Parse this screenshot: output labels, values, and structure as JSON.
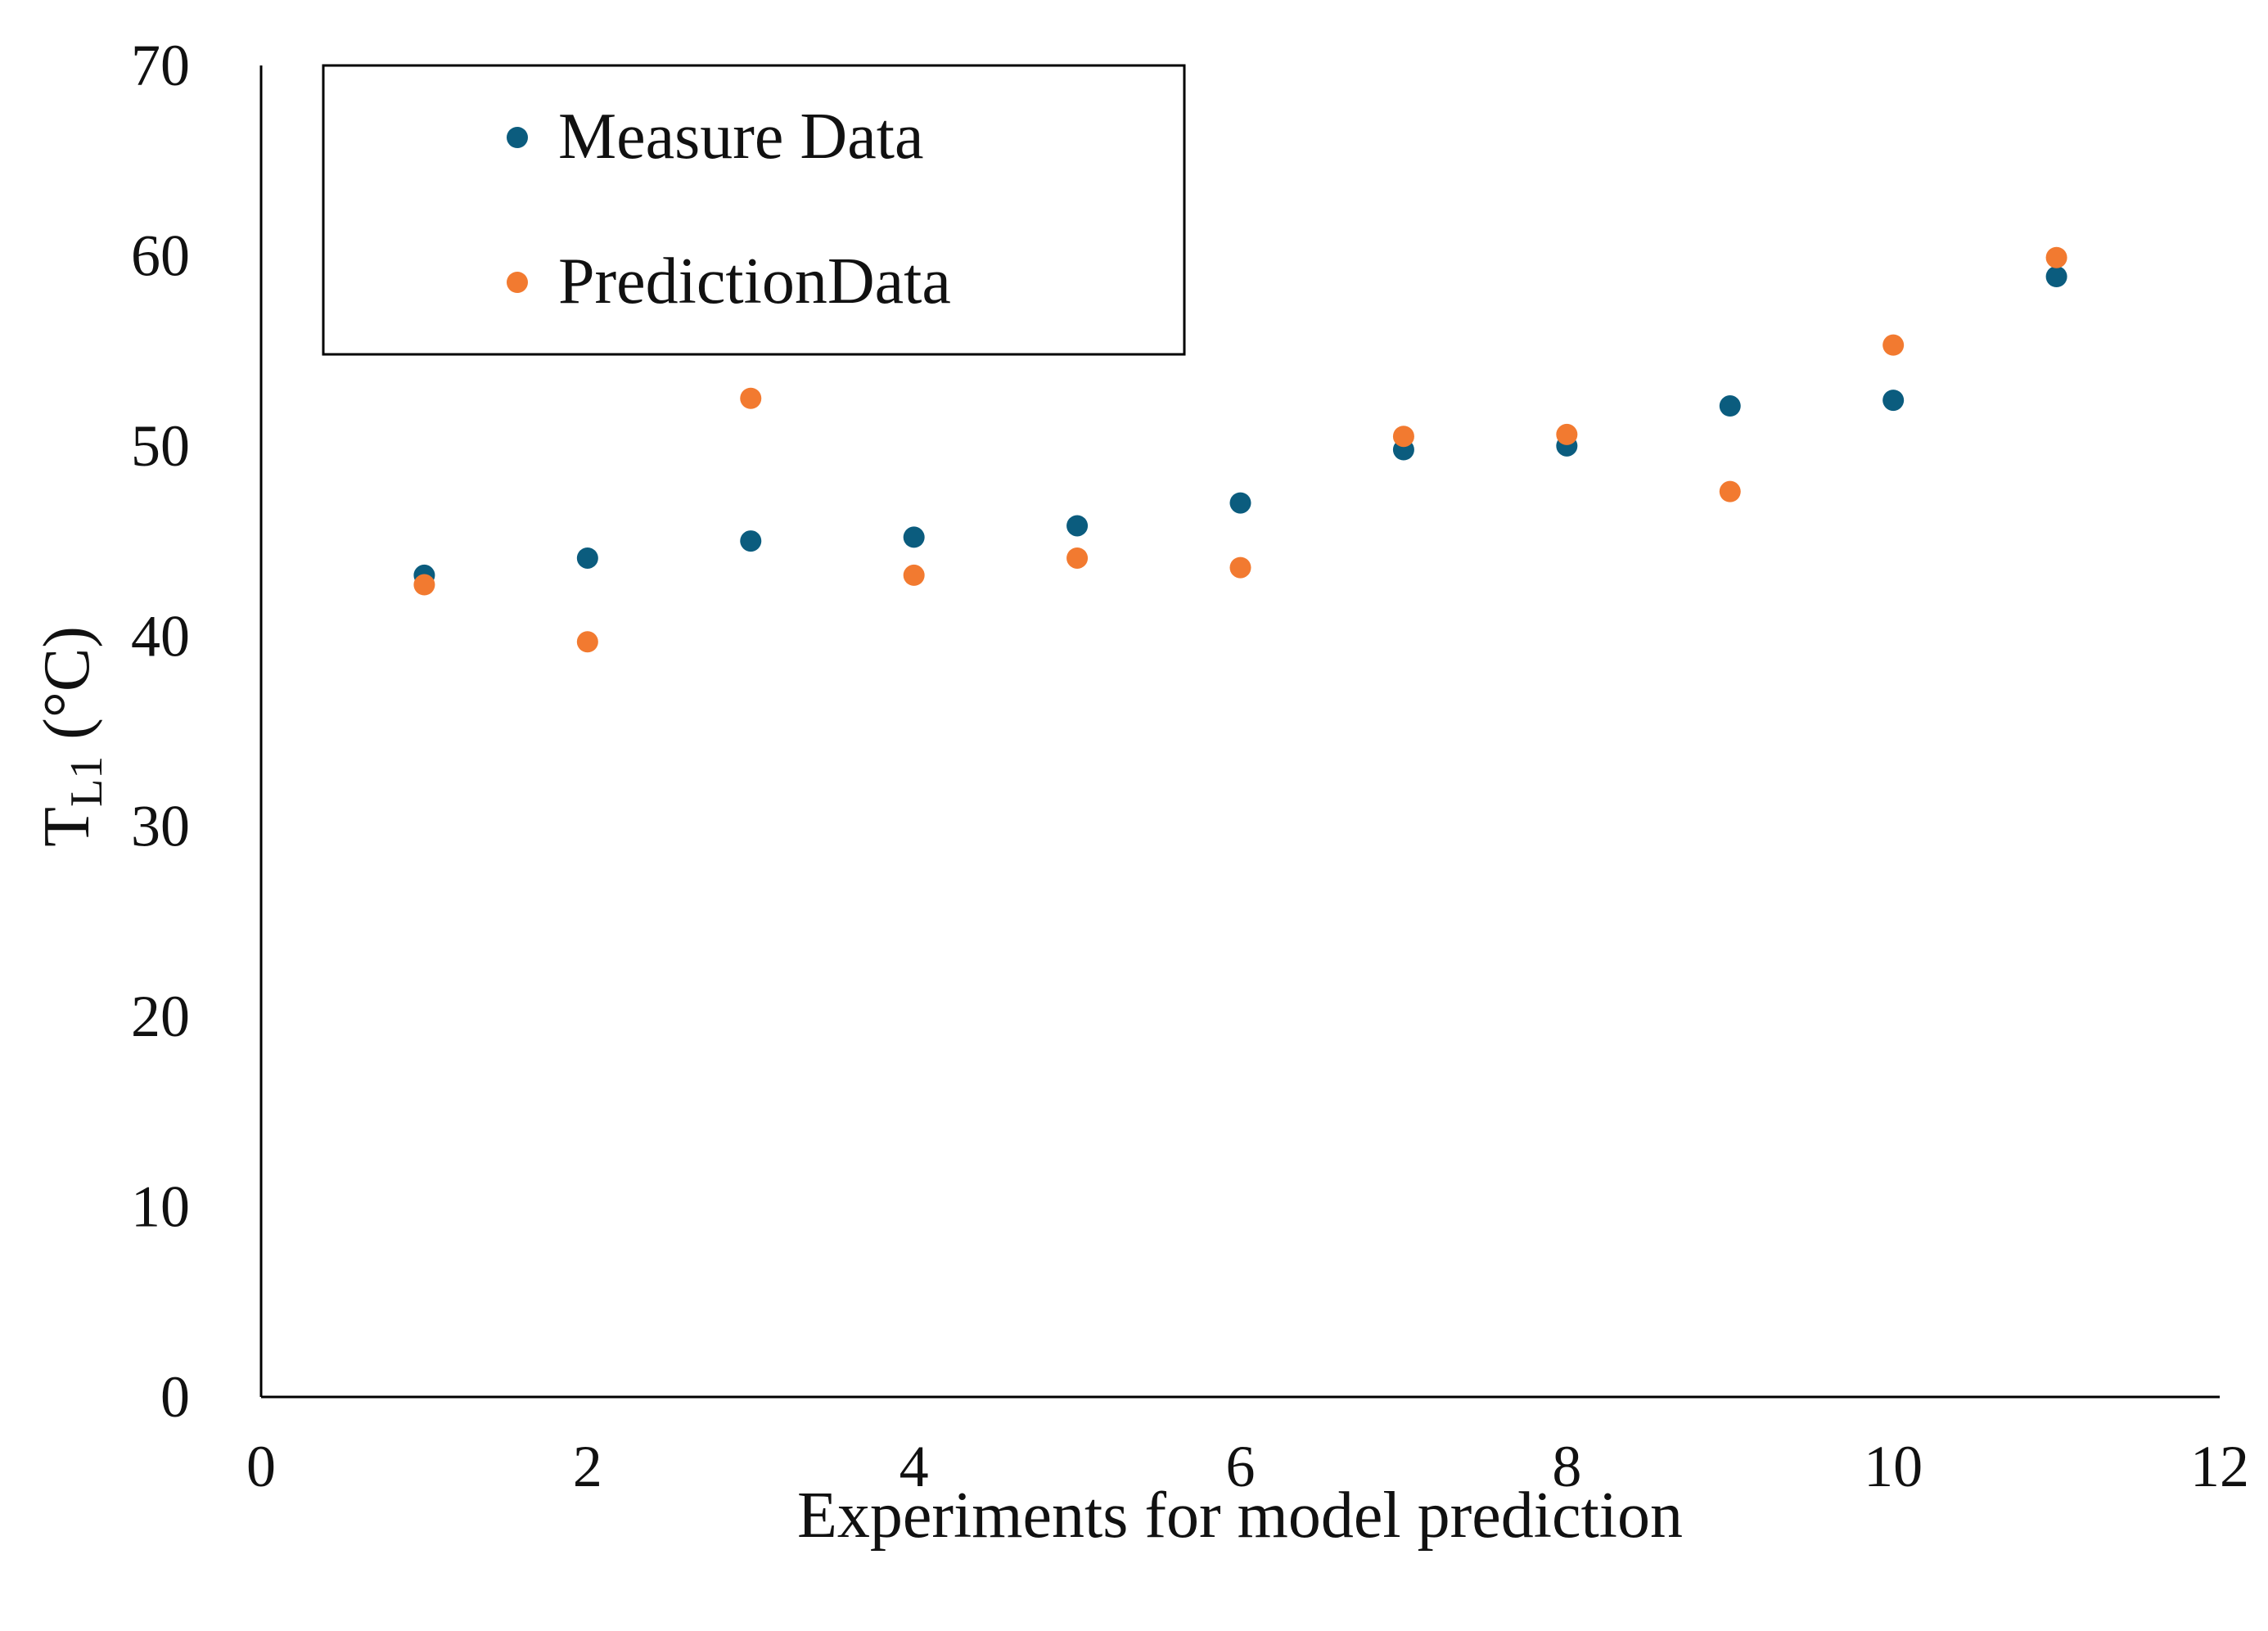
{
  "chart_data": {
    "type": "scatter",
    "title": "",
    "xlabel": "Experiments for model prediction",
    "ylabel": {
      "main": "T",
      "sub": "L1",
      "unit": " (°C)"
    },
    "xlim": [
      0,
      12
    ],
    "ylim": [
      0,
      70
    ],
    "x_ticks": [
      0,
      2,
      4,
      6,
      8,
      10,
      12
    ],
    "y_ticks": [
      0,
      10,
      20,
      30,
      40,
      50,
      60,
      70
    ],
    "grid": false,
    "legend_position": "top-left",
    "series": [
      {
        "name": "Measure Data",
        "color": "#0b5c7e",
        "x": [
          1,
          2,
          3,
          4,
          5,
          6,
          7,
          8,
          9,
          10,
          11
        ],
        "y": [
          43.2,
          44.1,
          45.0,
          45.2,
          45.8,
          47.0,
          49.8,
          50.0,
          52.1,
          52.4,
          58.9
        ]
      },
      {
        "name": "PredictionData",
        "color": "#f27a30",
        "x": [
          1,
          2,
          3,
          4,
          5,
          6,
          7,
          8,
          9,
          10,
          11
        ],
        "y": [
          42.7,
          39.7,
          52.5,
          43.2,
          44.1,
          43.6,
          50.5,
          50.6,
          47.6,
          55.3,
          59.9
        ]
      }
    ]
  }
}
